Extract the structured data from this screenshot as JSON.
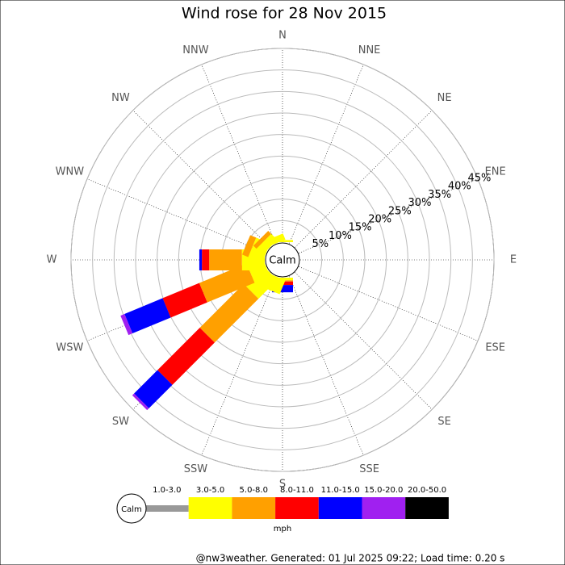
{
  "chart_data": {
    "type": "windrose",
    "title": "Wind rose for 28 Nov 2015",
    "center_label": "Calm",
    "directions": [
      "N",
      "NNE",
      "NE",
      "ENE",
      "E",
      "ESE",
      "SE",
      "SSE",
      "S",
      "SSW",
      "SW",
      "WSW",
      "W",
      "WNW",
      "NW",
      "NNW"
    ],
    "rlim": [
      0,
      45
    ],
    "rticks": [
      {
        "value": 5,
        "label": "5%"
      },
      {
        "value": 10,
        "label": "10%"
      },
      {
        "value": 15,
        "label": "15%"
      },
      {
        "value": 20,
        "label": "20%"
      },
      {
        "value": 25,
        "label": "25%"
      },
      {
        "value": 30,
        "label": "30%"
      },
      {
        "value": 35,
        "label": "35%"
      },
      {
        "value": 40,
        "label": "40%"
      },
      {
        "value": 45,
        "label": "45%"
      }
    ],
    "series": [
      {
        "name": "1.0-3.0",
        "color": "#999999",
        "values": [
          0,
          0,
          0,
          0,
          0,
          0,
          0,
          0,
          0,
          0,
          0,
          0,
          0,
          0,
          0,
          0
        ]
      },
      {
        "name": "3.0-5.0",
        "color": "#ffff00",
        "values": [
          0.5,
          0,
          0,
          0,
          0,
          0,
          0,
          0,
          0.6,
          3.5,
          6.2,
          3.9,
          5.3,
          3.5,
          2,
          1.5
        ]
      },
      {
        "name": "5.0-8.0",
        "color": "#ffa000",
        "values": [
          0,
          0,
          0,
          0,
          0,
          0,
          0,
          0,
          0.3,
          0,
          14.4,
          11.9,
          7.6,
          1.5,
          1,
          0
        ]
      },
      {
        "name": "8.0-11.0",
        "color": "#ff0000",
        "values": [
          0,
          0,
          0,
          0,
          0,
          0,
          0,
          0,
          0.8,
          0,
          13.9,
          9.2,
          1.7,
          0,
          0,
          0
        ]
      },
      {
        "name": "11.0-15.0",
        "color": "#0000ff",
        "values": [
          0,
          0,
          0,
          0,
          0,
          0,
          0,
          0,
          1.7,
          0,
          7.7,
          9.6,
          0.6,
          0,
          0,
          0
        ]
      },
      {
        "name": "15.0-20.0",
        "color": "#a020f0",
        "values": [
          0,
          0,
          0,
          0,
          0,
          0,
          0,
          0,
          0,
          0,
          0.6,
          1,
          0,
          0,
          0,
          0
        ]
      },
      {
        "name": "20.0-50.0",
        "color": "#000000",
        "values": [
          0,
          0,
          0,
          0,
          0,
          0,
          0,
          0,
          0,
          0,
          0,
          0,
          0,
          0,
          0,
          0
        ]
      }
    ],
    "legend_calm": "Calm",
    "unit_label": "mph",
    "footer": "@nw3weather. Generated: 01 Jul 2025 09:22; Load time: 0.20 s"
  }
}
